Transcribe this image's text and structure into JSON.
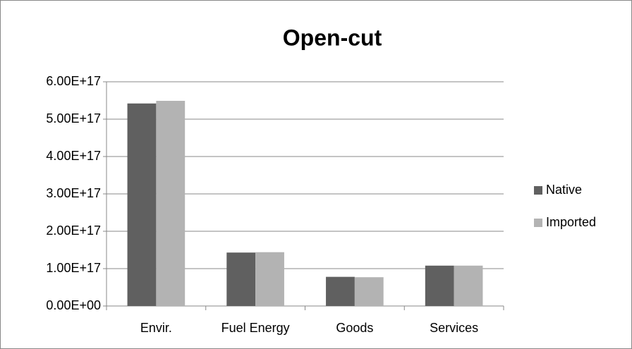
{
  "chart_data": {
    "type": "bar",
    "title": "Open-cut",
    "categories": [
      "Envir.",
      "Fuel Energy",
      "Goods",
      "Services"
    ],
    "series": [
      {
        "name": "Native",
        "color": "#606060",
        "values": [
          542000000000000000,
          143000000000000000,
          78000000000000000,
          108000000000000000
        ]
      },
      {
        "name": "Imported",
        "color": "#b3b3b3",
        "values": [
          549000000000000000,
          144000000000000000,
          77000000000000000,
          108000000000000000
        ]
      }
    ],
    "ylim": [
      0,
      600000000000000000
    ],
    "yticks": [
      {
        "value": 0,
        "label": "0.00E+00"
      },
      {
        "value": 100000000000000000,
        "label": "1.00E+17"
      },
      {
        "value": 200000000000000000,
        "label": "2.00E+17"
      },
      {
        "value": 300000000000000000,
        "label": "3.00E+17"
      },
      {
        "value": 400000000000000000,
        "label": "4.00E+17"
      },
      {
        "value": 500000000000000000,
        "label": "5.00E+17"
      },
      {
        "value": 600000000000000000,
        "label": "6.00E+17"
      }
    ],
    "grid": true,
    "legend": "right"
  }
}
